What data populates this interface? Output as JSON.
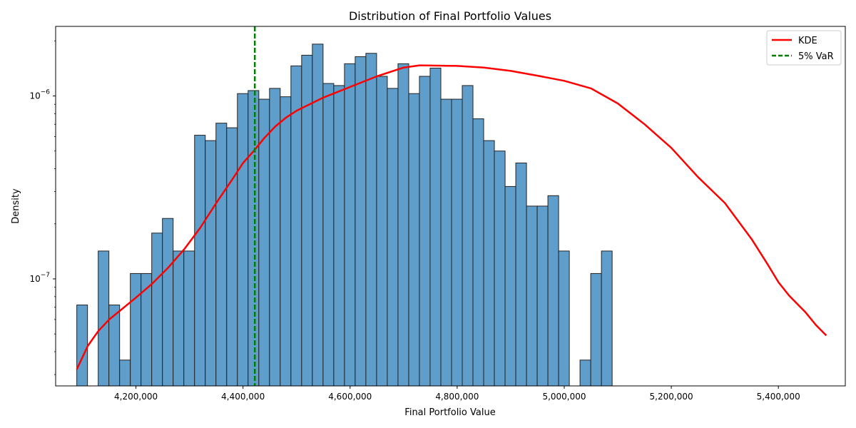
{
  "chart_data": {
    "type": "bar",
    "title": "Distribution of Final Portfolio Values",
    "xlabel": "Final Portfolio Value",
    "ylabel": "Density",
    "y_scale": "log",
    "xlim": [
      4050000,
      5525000
    ],
    "ylim": [
      2.6e-08,
      2.4e-06
    ],
    "x_ticks": [
      4200000,
      4400000,
      4600000,
      4800000,
      5000000,
      5200000,
      5400000
    ],
    "x_tick_labels": [
      "4,200,000",
      "4,400,000",
      "4,600,000",
      "4,800,000",
      "5,000,000",
      "5,200,000",
      "5,400,000"
    ],
    "y_ticks": [
      1e-07,
      1e-06
    ],
    "y_tick_labels": [
      {
        "base": "10",
        "exp": "−7"
      },
      {
        "base": "10",
        "exp": "−6"
      }
    ],
    "grid": false,
    "legend_position": "top-right",
    "histogram": {
      "name": "",
      "color": "#5f9ecb",
      "edge_color": "#222222",
      "bin_start": 4089500,
      "bin_width": 20000,
      "density": [
        7.2e-08,
        0,
        1.42e-07,
        7.2e-08,
        3.6e-08,
        1.07e-07,
        1.07e-07,
        1.78e-07,
        2.14e-07,
        1.42e-07,
        1.42e-07,
        6.1e-07,
        5.7e-07,
        7.1e-07,
        6.7e-07,
        1.03e-06,
        1.07e-06,
        9.6e-07,
        1.1e-06,
        9.9e-07,
        1.46e-06,
        1.67e-06,
        1.92e-06,
        1.17e-06,
        1.14e-06,
        1.5e-06,
        1.64e-06,
        1.71e-06,
        1.28e-06,
        1.1e-06,
        1.5e-06,
        1.03e-06,
        1.28e-06,
        1.42e-06,
        9.6e-07,
        9.6e-07,
        1.14e-06,
        7.5e-07,
        5.7e-07,
        5e-07,
        3.2e-07,
        4.3e-07,
        2.5e-07,
        2.5e-07,
        2.85e-07,
        1.42e-07,
        0,
        3.6e-08,
        1.07e-07,
        1.42e-07
      ]
    },
    "series": [
      {
        "name": "KDE",
        "type": "line",
        "color": "#ff0000",
        "x": [
          4089500,
          4110000,
          4130000,
          4150000,
          4170000,
          4200000,
          4230000,
          4260000,
          4290000,
          4320000,
          4350000,
          4380000,
          4400000,
          4420000,
          4440000,
          4460000,
          4480000,
          4500000,
          4550000,
          4600000,
          4650000,
          4700000,
          4730000,
          4800000,
          4850000,
          4900000,
          4950000,
          5000000,
          5050000,
          5100000,
          5150000,
          5200000,
          5250000,
          5300000,
          5350000,
          5380000,
          5400000,
          5420000,
          5450000,
          5470000,
          5489500
        ],
        "y": [
          3.2e-08,
          4.3e-08,
          5.2e-08,
          6e-08,
          6.7e-08,
          7.9e-08,
          9.4e-08,
          1.15e-07,
          1.45e-07,
          1.9e-07,
          2.6e-07,
          3.5e-07,
          4.3e-07,
          5e-07,
          5.9e-07,
          6.8e-07,
          7.6e-07,
          8.3e-07,
          9.8e-07,
          1.12e-06,
          1.28e-06,
          1.43e-06,
          1.47e-06,
          1.46e-06,
          1.43e-06,
          1.37e-06,
          1.29e-06,
          1.21e-06,
          1.1e-06,
          9.1e-07,
          7e-07,
          5.2e-07,
          3.6e-07,
          2.6e-07,
          1.65e-07,
          1.2e-07,
          9.6e-08,
          8.1e-08,
          6.6e-08,
          5.6e-08,
          4.9e-08
        ]
      },
      {
        "name": "5% VaR",
        "type": "vline",
        "color": "#008000",
        "style": "dashed",
        "x": 4422000
      }
    ]
  }
}
